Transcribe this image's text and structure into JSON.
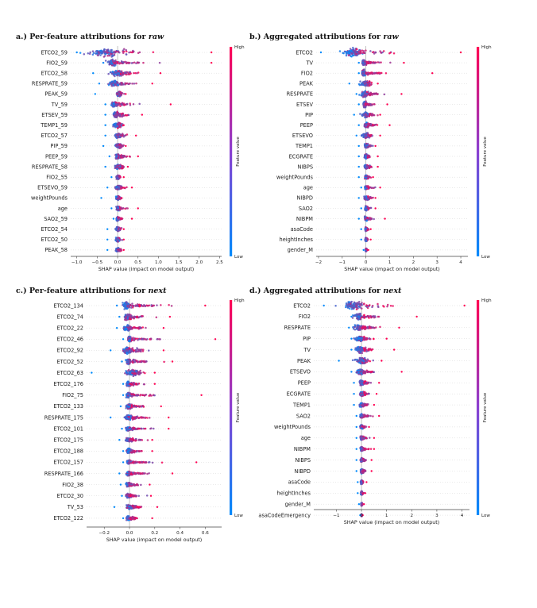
{
  "colors": {
    "low": "#008afb",
    "high": "#ff0052",
    "zero_line": "#999999",
    "axis": "#444444"
  },
  "chart_data": [
    {
      "type": "scatter",
      "subtype": "shap-beeswarm",
      "title_prefix": "a.) Per-feature attributions for ",
      "title_emph": "raw",
      "xlabel": "SHAP value (impact on model output)",
      "xlim": [
        -1.15,
        2.55
      ],
      "xticks": [
        -1.0,
        -0.5,
        0.0,
        0.5,
        1.0,
        1.5,
        2.0,
        2.5
      ],
      "xtick_labels": [
        "−1.0",
        "−0.5",
        "0.0",
        "0.5",
        "1.0",
        "1.5",
        "2.0",
        "2.5"
      ],
      "colorbar": {
        "label": "Feature value",
        "high": "High",
        "low": "Low"
      },
      "features": [
        {
          "name": "ETCO2_59",
          "min": -1.0,
          "max": 2.3,
          "peak": -0.3,
          "neg": 0.75,
          "pos": 1.1,
          "th": 6.5
        },
        {
          "name": "FIO2_59",
          "min": -0.35,
          "max": 2.3,
          "peak": -0.12,
          "neg": 0.25,
          "pos": 1.0,
          "th": 5.0
        },
        {
          "name": "ETCO2_58",
          "min": -0.6,
          "max": 1.05,
          "peak": 0.0,
          "neg": 0.35,
          "pos": 0.6,
          "th": 4.5
        },
        {
          "name": "RESPRATE_59",
          "min": -0.45,
          "max": 0.85,
          "peak": -0.05,
          "neg": 0.25,
          "pos": 0.55,
          "th": 5.0
        },
        {
          "name": "PEAK_59",
          "min": -0.55,
          "max": 0.2,
          "peak": 0.02,
          "neg": 0.15,
          "pos": 0.12,
          "th": 4.0
        },
        {
          "name": "TV_59",
          "min": -0.3,
          "max": 1.3,
          "peak": -0.08,
          "neg": 0.2,
          "pos": 0.6,
          "th": 4.5
        },
        {
          "name": "ETSEV_59",
          "min": -0.3,
          "max": 0.6,
          "peak": -0.05,
          "neg": 0.2,
          "pos": 0.35,
          "th": 4.5
        },
        {
          "name": "TEMP1_59",
          "min": -0.3,
          "max": 0.15,
          "peak": 0.0,
          "neg": 0.22,
          "pos": 0.1,
          "th": 4.0
        },
        {
          "name": "ETCO2_57",
          "min": -0.3,
          "max": 0.45,
          "peak": 0.0,
          "neg": 0.2,
          "pos": 0.25,
          "th": 4.0
        },
        {
          "name": "PIP_59",
          "min": -0.35,
          "max": 0.2,
          "peak": 0.02,
          "neg": 0.2,
          "pos": 0.15,
          "th": 3.5
        },
        {
          "name": "PEEP_59",
          "min": -0.2,
          "max": 0.5,
          "peak": 0.0,
          "neg": 0.15,
          "pos": 0.3,
          "th": 4.0
        },
        {
          "name": "RESPRATE_58",
          "min": -0.3,
          "max": 0.25,
          "peak": 0.0,
          "neg": 0.2,
          "pos": 0.2,
          "th": 4.0
        },
        {
          "name": "FIO2_55",
          "min": -0.15,
          "max": 0.15,
          "peak": 0.0,
          "neg": 0.1,
          "pos": 0.1,
          "th": 3.0
        },
        {
          "name": "ETSEVO_59",
          "min": -0.25,
          "max": 0.35,
          "peak": 0.0,
          "neg": 0.15,
          "pos": 0.2,
          "th": 3.5
        },
        {
          "name": "weightPounds",
          "min": -0.4,
          "max": 0.1,
          "peak": 0.0,
          "neg": 0.12,
          "pos": 0.08,
          "th": 3.0
        },
        {
          "name": "age",
          "min": -0.15,
          "max": 0.5,
          "peak": 0.0,
          "neg": 0.1,
          "pos": 0.2,
          "th": 3.5
        },
        {
          "name": "SAO2_59",
          "min": -0.1,
          "max": 0.35,
          "peak": 0.0,
          "neg": 0.08,
          "pos": 0.15,
          "th": 3.5
        },
        {
          "name": "ETCO2_54",
          "min": -0.25,
          "max": 0.15,
          "peak": 0.0,
          "neg": 0.15,
          "pos": 0.1,
          "th": 3.0
        },
        {
          "name": "ETCO2_50",
          "min": -0.25,
          "max": 0.15,
          "peak": 0.0,
          "neg": 0.15,
          "pos": 0.1,
          "th": 3.0
        },
        {
          "name": "PEAK_58",
          "min": -0.25,
          "max": 0.15,
          "peak": 0.0,
          "neg": 0.15,
          "pos": 0.1,
          "th": 3.0
        }
      ]
    },
    {
      "type": "scatter",
      "subtype": "shap-beeswarm",
      "title_prefix": "b.) Aggregated attributions for ",
      "title_emph": "raw",
      "xlabel": "SHAP value (impact on model output)",
      "xlim": [
        -2.1,
        4.3
      ],
      "xticks": [
        -2,
        -1,
        0,
        1,
        2,
        3,
        4
      ],
      "xtick_labels": [
        "−2",
        "−1",
        "0",
        "1",
        "2",
        "3",
        "4"
      ],
      "colorbar": {
        "label": "Feature value",
        "high": "High",
        "low": "Low"
      },
      "features": [
        {
          "name": "ETCO2",
          "min": -1.9,
          "max": 4.0,
          "peak": -0.5,
          "neg": 1.0,
          "pos": 2.0,
          "th": 6.5
        },
        {
          "name": "TV",
          "min": -0.3,
          "max": 1.6,
          "peak": -0.1,
          "neg": 0.2,
          "pos": 0.8,
          "th": 4.5
        },
        {
          "name": "FIO2",
          "min": -0.3,
          "max": 2.8,
          "peak": -0.1,
          "neg": 0.2,
          "pos": 1.2,
          "th": 5.0
        },
        {
          "name": "PEAK",
          "min": -0.7,
          "max": 0.5,
          "peak": 0.0,
          "neg": 0.4,
          "pos": 0.3,
          "th": 4.5
        },
        {
          "name": "RESPRATE",
          "min": -0.4,
          "max": 1.5,
          "peak": -0.05,
          "neg": 0.3,
          "pos": 0.8,
          "th": 5.0
        },
        {
          "name": "ETSEV",
          "min": -0.3,
          "max": 0.9,
          "peak": -0.05,
          "neg": 0.2,
          "pos": 0.5,
          "th": 4.5
        },
        {
          "name": "PIP",
          "min": -0.5,
          "max": 0.6,
          "peak": 0.0,
          "neg": 0.3,
          "pos": 0.4,
          "th": 4.0
        },
        {
          "name": "PEEP",
          "min": -0.3,
          "max": 1.0,
          "peak": 0.0,
          "neg": 0.2,
          "pos": 0.5,
          "th": 4.0
        },
        {
          "name": "ETSEVO",
          "min": -0.4,
          "max": 0.6,
          "peak": 0.0,
          "neg": 0.25,
          "pos": 0.35,
          "th": 4.0
        },
        {
          "name": "TEMP1",
          "min": -0.3,
          "max": 0.4,
          "peak": 0.0,
          "neg": 0.2,
          "pos": 0.25,
          "th": 3.5
        },
        {
          "name": "ECGRATE",
          "min": -0.3,
          "max": 0.5,
          "peak": 0.0,
          "neg": 0.2,
          "pos": 0.3,
          "th": 3.5
        },
        {
          "name": "NIBPS",
          "min": -0.3,
          "max": 0.5,
          "peak": 0.0,
          "neg": 0.2,
          "pos": 0.3,
          "th": 3.5
        },
        {
          "name": "weightPounds",
          "min": -0.3,
          "max": 0.3,
          "peak": 0.0,
          "neg": 0.15,
          "pos": 0.2,
          "th": 3.0
        },
        {
          "name": "age",
          "min": -0.2,
          "max": 0.6,
          "peak": 0.0,
          "neg": 0.12,
          "pos": 0.3,
          "th": 3.5
        },
        {
          "name": "NIBPD",
          "min": -0.3,
          "max": 0.4,
          "peak": 0.0,
          "neg": 0.2,
          "pos": 0.25,
          "th": 3.5
        },
        {
          "name": "SAO2",
          "min": -0.2,
          "max": 0.4,
          "peak": 0.0,
          "neg": 0.12,
          "pos": 0.2,
          "th": 3.5
        },
        {
          "name": "NIBPM",
          "min": -0.3,
          "max": 0.8,
          "peak": 0.0,
          "neg": 0.15,
          "pos": 0.35,
          "th": 3.5
        },
        {
          "name": "asaCode",
          "min": -0.2,
          "max": 0.2,
          "peak": 0.0,
          "neg": 0.1,
          "pos": 0.1,
          "th": 3.0
        },
        {
          "name": "heightInches",
          "min": -0.2,
          "max": 0.2,
          "peak": 0.0,
          "neg": 0.1,
          "pos": 0.1,
          "th": 3.0
        },
        {
          "name": "gender_M",
          "min": -0.1,
          "max": 0.1,
          "peak": 0.0,
          "neg": 0.05,
          "pos": 0.05,
          "th": 2.5
        }
      ]
    },
    {
      "type": "scatter",
      "subtype": "shap-beeswarm",
      "title_prefix": "c.) Per-feature attributions for ",
      "title_emph": "next",
      "xlabel": "SHAP value (impact on model output)",
      "xlim": [
        -0.34,
        0.73
      ],
      "xticks": [
        -0.2,
        0.0,
        0.2,
        0.4,
        0.6
      ],
      "xtick_labels": [
        "−0.2",
        "0.0",
        "0.2",
        "0.4",
        "0.6"
      ],
      "colorbar": {
        "label": "Feature value",
        "high": "High",
        "low": "Low"
      },
      "features": [
        {
          "name": "ETCO2_134",
          "min": -0.1,
          "max": 0.6,
          "peak": -0.03,
          "neg": 0.08,
          "pos": 0.35,
          "th": 6.0
        },
        {
          "name": "ETCO2_74",
          "min": -0.08,
          "max": 0.32,
          "peak": -0.02,
          "neg": 0.06,
          "pos": 0.2,
          "th": 5.0
        },
        {
          "name": "ETCO2_22",
          "min": -0.1,
          "max": 0.27,
          "peak": -0.02,
          "neg": 0.08,
          "pos": 0.17,
          "th": 4.5
        },
        {
          "name": "ETCO2_46",
          "min": -0.05,
          "max": 0.68,
          "peak": 0.0,
          "neg": 0.04,
          "pos": 0.3,
          "th": 4.5
        },
        {
          "name": "ETCO2_92",
          "min": -0.15,
          "max": 0.27,
          "peak": -0.02,
          "neg": 0.1,
          "pos": 0.18,
          "th": 5.0
        },
        {
          "name": "ETCO2_52",
          "min": -0.06,
          "max": 0.34,
          "peak": -0.01,
          "neg": 0.05,
          "pos": 0.2,
          "th": 4.5
        },
        {
          "name": "ETCO2_63",
          "min": -0.3,
          "max": 0.2,
          "peak": 0.02,
          "neg": 0.15,
          "pos": 0.1,
          "th": 4.5
        },
        {
          "name": "ETCO2_176",
          "min": -0.05,
          "max": 0.2,
          "peak": -0.01,
          "neg": 0.04,
          "pos": 0.12,
          "th": 4.0
        },
        {
          "name": "FIO2_75",
          "min": -0.05,
          "max": 0.57,
          "peak": -0.01,
          "neg": 0.04,
          "pos": 0.25,
          "th": 4.0
        },
        {
          "name": "ETCO2_133",
          "min": -0.07,
          "max": 0.25,
          "peak": -0.01,
          "neg": 0.05,
          "pos": 0.15,
          "th": 4.0
        },
        {
          "name": "RESPRATE_175",
          "min": -0.15,
          "max": 0.31,
          "peak": -0.01,
          "neg": 0.08,
          "pos": 0.18,
          "th": 4.0
        },
        {
          "name": "ETCO2_101",
          "min": -0.06,
          "max": 0.31,
          "peak": -0.01,
          "neg": 0.05,
          "pos": 0.18,
          "th": 3.5
        },
        {
          "name": "ETCO2_175",
          "min": -0.08,
          "max": 0.18,
          "peak": -0.01,
          "neg": 0.06,
          "pos": 0.12,
          "th": 3.5
        },
        {
          "name": "ETCO2_188",
          "min": -0.05,
          "max": 0.18,
          "peak": -0.01,
          "neg": 0.04,
          "pos": 0.12,
          "th": 4.5
        },
        {
          "name": "ETCO2_157",
          "min": -0.05,
          "max": 0.53,
          "peak": -0.01,
          "neg": 0.04,
          "pos": 0.25,
          "th": 3.5
        },
        {
          "name": "RESPRATE_166",
          "min": -0.08,
          "max": 0.34,
          "peak": -0.01,
          "neg": 0.05,
          "pos": 0.18,
          "th": 3.5
        },
        {
          "name": "FIO2_38",
          "min": -0.07,
          "max": 0.16,
          "peak": -0.01,
          "neg": 0.05,
          "pos": 0.1,
          "th": 3.5
        },
        {
          "name": "ETCO2_30",
          "min": -0.06,
          "max": 0.17,
          "peak": -0.01,
          "neg": 0.05,
          "pos": 0.12,
          "th": 3.5
        },
        {
          "name": "TV_53",
          "min": -0.12,
          "max": 0.22,
          "peak": 0.0,
          "neg": 0.08,
          "pos": 0.12,
          "th": 3.5
        },
        {
          "name": "ETCO2_122",
          "min": -0.05,
          "max": 0.18,
          "peak": -0.01,
          "neg": 0.04,
          "pos": 0.12,
          "th": 3.5
        }
      ]
    },
    {
      "type": "scatter",
      "subtype": "shap-beeswarm",
      "title_prefix": "d.) Aggregated attributions for ",
      "title_emph": "next",
      "xlabel": "SHAP value (impact on model output)",
      "xlim": [
        -1.9,
        4.3
      ],
      "xticks": [
        -1,
        0,
        1,
        2,
        3,
        4
      ],
      "xtick_labels": [
        "−1",
        "0",
        "1",
        "2",
        "3",
        "4"
      ],
      "colorbar": {
        "label": "Feature value",
        "high": "High",
        "low": "Low"
      },
      "features": [
        {
          "name": "ETCO2",
          "min": -1.5,
          "max": 4.1,
          "peak": -0.3,
          "neg": 0.9,
          "pos": 2.2,
          "th": 6.5
        },
        {
          "name": "FIO2",
          "min": -0.4,
          "max": 2.2,
          "peak": -0.1,
          "neg": 0.3,
          "pos": 1.0,
          "th": 5.0
        },
        {
          "name": "RESPRATE",
          "min": -0.5,
          "max": 1.5,
          "peak": -0.1,
          "neg": 0.3,
          "pos": 0.8,
          "th": 5.0
        },
        {
          "name": "PIP",
          "min": -0.4,
          "max": 1.0,
          "peak": -0.05,
          "neg": 0.3,
          "pos": 0.6,
          "th": 4.5
        },
        {
          "name": "TV",
          "min": -0.4,
          "max": 1.3,
          "peak": -0.05,
          "neg": 0.3,
          "pos": 0.7,
          "th": 5.0
        },
        {
          "name": "PEAK",
          "min": -0.9,
          "max": 0.8,
          "peak": 0.0,
          "neg": 0.5,
          "pos": 0.4,
          "th": 5.0
        },
        {
          "name": "ETSEVO",
          "min": -0.4,
          "max": 1.6,
          "peak": -0.05,
          "neg": 0.3,
          "pos": 0.8,
          "th": 4.5
        },
        {
          "name": "PEEP",
          "min": -0.3,
          "max": 0.7,
          "peak": 0.0,
          "neg": 0.2,
          "pos": 0.4,
          "th": 4.0
        },
        {
          "name": "ECGRATE",
          "min": -0.3,
          "max": 0.6,
          "peak": 0.0,
          "neg": 0.2,
          "pos": 0.35,
          "th": 4.0
        },
        {
          "name": "TEMP1",
          "min": -0.3,
          "max": 0.5,
          "peak": 0.0,
          "neg": 0.2,
          "pos": 0.3,
          "th": 3.5
        },
        {
          "name": "SAO2",
          "min": -0.2,
          "max": 0.7,
          "peak": 0.0,
          "neg": 0.15,
          "pos": 0.35,
          "th": 3.5
        },
        {
          "name": "weightPounds",
          "min": -0.2,
          "max": 0.3,
          "peak": 0.0,
          "neg": 0.15,
          "pos": 0.2,
          "th": 3.0
        },
        {
          "name": "age",
          "min": -0.2,
          "max": 0.5,
          "peak": 0.0,
          "neg": 0.12,
          "pos": 0.25,
          "th": 3.5
        },
        {
          "name": "NIBPM",
          "min": -0.2,
          "max": 0.5,
          "peak": 0.0,
          "neg": 0.12,
          "pos": 0.25,
          "th": 3.5
        },
        {
          "name": "NIBPS",
          "min": -0.2,
          "max": 0.4,
          "peak": 0.0,
          "neg": 0.12,
          "pos": 0.2,
          "th": 3.5
        },
        {
          "name": "NIBPD",
          "min": -0.2,
          "max": 0.4,
          "peak": 0.0,
          "neg": 0.12,
          "pos": 0.2,
          "th": 3.5
        },
        {
          "name": "asaCode",
          "min": -0.15,
          "max": 0.2,
          "peak": 0.0,
          "neg": 0.1,
          "pos": 0.1,
          "th": 3.0
        },
        {
          "name": "heightInches",
          "min": -0.15,
          "max": 0.15,
          "peak": 0.0,
          "neg": 0.08,
          "pos": 0.08,
          "th": 3.0
        },
        {
          "name": "gender_M",
          "min": -0.1,
          "max": 0.1,
          "peak": 0.0,
          "neg": 0.05,
          "pos": 0.05,
          "th": 2.5
        },
        {
          "name": "asaCodeEmergency",
          "min": -0.05,
          "max": 0.05,
          "peak": 0.0,
          "neg": 0.03,
          "pos": 0.03,
          "th": 2.0
        }
      ]
    }
  ]
}
